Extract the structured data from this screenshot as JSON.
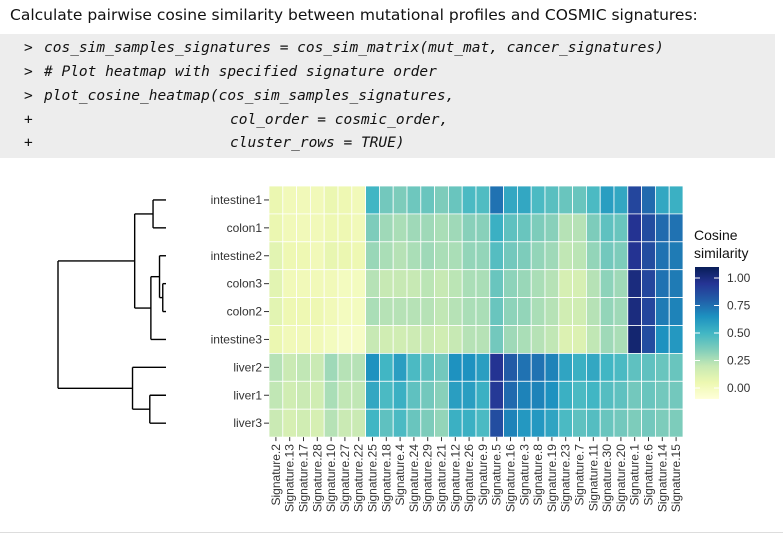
{
  "caption": "Calculate pairwise cosine similarity between mutational profiles and COSMIC signatures:",
  "code_lines": [
    {
      "prompt": ">",
      "code": "cos_sim_samples_signatures = cos_sim_matrix(mut_mat, cancer_signatures)"
    },
    {
      "prompt": ">",
      "code": "# Plot heatmap with specified signature order"
    },
    {
      "prompt": ">",
      "code": "plot_cosine_heatmap(cos_sim_samples_signatures,"
    },
    {
      "prompt": "+",
      "code": "col_order = cosmic_order,"
    },
    {
      "prompt": "+",
      "code": "cluster_rows = TRUE)"
    }
  ],
  "colors": {
    "scale": [
      "#ffffd9",
      "#edf8b1",
      "#c7e9b4",
      "#7fcdbb",
      "#41b6c4",
      "#1d91c0",
      "#225ea8",
      "#253494",
      "#081d58"
    ],
    "code_background": "#ededed",
    "dendrogram": "#000000"
  },
  "chart_data": {
    "type": "heatmap",
    "title": "",
    "row_labels": [
      "intestine1",
      "colon1",
      "intestine2",
      "colon3",
      "colon2",
      "intestine3",
      "liver2",
      "liver1",
      "liver3"
    ],
    "col_labels": [
      "Signature.2",
      "Signature.13",
      "Signature.17",
      "Signature.28",
      "Signature.10",
      "Signature.27",
      "Signature.22",
      "Signature.25",
      "Signature.18",
      "Signature.4",
      "Signature.24",
      "Signature.29",
      "Signature.21",
      "Signature.12",
      "Signature.26",
      "Signature.9",
      "Signature.5",
      "Signature.16",
      "Signature.3",
      "Signature.8",
      "Signature.19",
      "Signature.23",
      "Signature.7",
      "Signature.11",
      "Signature.30",
      "Signature.20",
      "Signature.1",
      "Signature.6",
      "Signature.14",
      "Signature.15"
    ],
    "values": [
      [
        0.13,
        0.1,
        0.1,
        0.1,
        0.13,
        0.12,
        0.1,
        0.5,
        0.4,
        0.38,
        0.41,
        0.42,
        0.38,
        0.42,
        0.48,
        0.47,
        0.7,
        0.55,
        0.55,
        0.48,
        0.45,
        0.42,
        0.42,
        0.48,
        0.58,
        0.55,
        0.82,
        0.72,
        0.55,
        0.52
      ],
      [
        0.13,
        0.1,
        0.1,
        0.1,
        0.12,
        0.12,
        0.1,
        0.38,
        0.32,
        0.3,
        0.32,
        0.32,
        0.3,
        0.32,
        0.36,
        0.36,
        0.52,
        0.44,
        0.42,
        0.38,
        0.36,
        0.28,
        0.28,
        0.38,
        0.44,
        0.42,
        0.88,
        0.8,
        0.72,
        0.7
      ],
      [
        0.16,
        0.12,
        0.12,
        0.1,
        0.14,
        0.13,
        0.12,
        0.33,
        0.3,
        0.28,
        0.3,
        0.32,
        0.3,
        0.3,
        0.34,
        0.34,
        0.46,
        0.4,
        0.38,
        0.34,
        0.32,
        0.26,
        0.27,
        0.34,
        0.4,
        0.38,
        0.88,
        0.8,
        0.7,
        0.68
      ],
      [
        0.16,
        0.1,
        0.1,
        0.1,
        0.1,
        0.08,
        0.08,
        0.28,
        0.25,
        0.25,
        0.25,
        0.27,
        0.25,
        0.27,
        0.3,
        0.3,
        0.42,
        0.35,
        0.33,
        0.3,
        0.28,
        0.2,
        0.2,
        0.28,
        0.35,
        0.32,
        0.92,
        0.82,
        0.7,
        0.68
      ],
      [
        0.16,
        0.12,
        0.12,
        0.12,
        0.1,
        0.08,
        0.08,
        0.3,
        0.28,
        0.28,
        0.28,
        0.28,
        0.26,
        0.28,
        0.3,
        0.3,
        0.42,
        0.35,
        0.34,
        0.3,
        0.28,
        0.22,
        0.22,
        0.28,
        0.34,
        0.32,
        0.92,
        0.82,
        0.68,
        0.66
      ],
      [
        0.13,
        0.1,
        0.1,
        0.1,
        0.08,
        0.06,
        0.06,
        0.25,
        0.22,
        0.22,
        0.23,
        0.24,
        0.22,
        0.25,
        0.28,
        0.28,
        0.4,
        0.32,
        0.3,
        0.28,
        0.26,
        0.18,
        0.18,
        0.26,
        0.32,
        0.3,
        0.95,
        0.8,
        0.62,
        0.6
      ],
      [
        0.28,
        0.24,
        0.26,
        0.24,
        0.32,
        0.28,
        0.28,
        0.62,
        0.5,
        0.58,
        0.48,
        0.44,
        0.4,
        0.62,
        0.62,
        0.58,
        0.88,
        0.76,
        0.7,
        0.7,
        0.66,
        0.56,
        0.52,
        0.55,
        0.5,
        0.48,
        0.44,
        0.44,
        0.42,
        0.42
      ],
      [
        0.26,
        0.22,
        0.24,
        0.22,
        0.3,
        0.26,
        0.26,
        0.55,
        0.48,
        0.52,
        0.44,
        0.4,
        0.36,
        0.58,
        0.58,
        0.52,
        0.86,
        0.72,
        0.66,
        0.66,
        0.62,
        0.52,
        0.48,
        0.5,
        0.46,
        0.44,
        0.4,
        0.42,
        0.4,
        0.4
      ],
      [
        0.24,
        0.2,
        0.22,
        0.2,
        0.28,
        0.24,
        0.24,
        0.5,
        0.44,
        0.48,
        0.42,
        0.38,
        0.34,
        0.52,
        0.52,
        0.48,
        0.8,
        0.66,
        0.6,
        0.6,
        0.56,
        0.48,
        0.44,
        0.46,
        0.42,
        0.4,
        0.38,
        0.4,
        0.38,
        0.38
      ]
    ],
    "legend": {
      "title_line1": "Cosine",
      "title_line2": "similarity",
      "ticks": [
        1.0,
        0.75,
        0.5,
        0.25,
        0.0
      ],
      "tick_labels": [
        "1.00",
        "0.75",
        "0.50",
        "0.25",
        "0.00"
      ],
      "range": [
        0,
        1
      ],
      "position": "right"
    },
    "dendrogram": {
      "orientation": "left",
      "merges": [
        {
          "a": 3,
          "b": 4,
          "height": 0.03
        },
        {
          "a": 2,
          "b": "m0",
          "height": 0.06
        },
        {
          "a": 0,
          "b": 1,
          "height": 0.12
        },
        {
          "a": "m1",
          "b": 5,
          "height": 0.14
        },
        {
          "a": 7,
          "b": 8,
          "height": 0.15
        },
        {
          "a": "m2",
          "b": "m3",
          "height": 0.29
        },
        {
          "a": 6,
          "b": "m4",
          "height": 0.31
        },
        {
          "a": "m5",
          "b": "m6",
          "height": 1.0
        }
      ]
    }
  }
}
